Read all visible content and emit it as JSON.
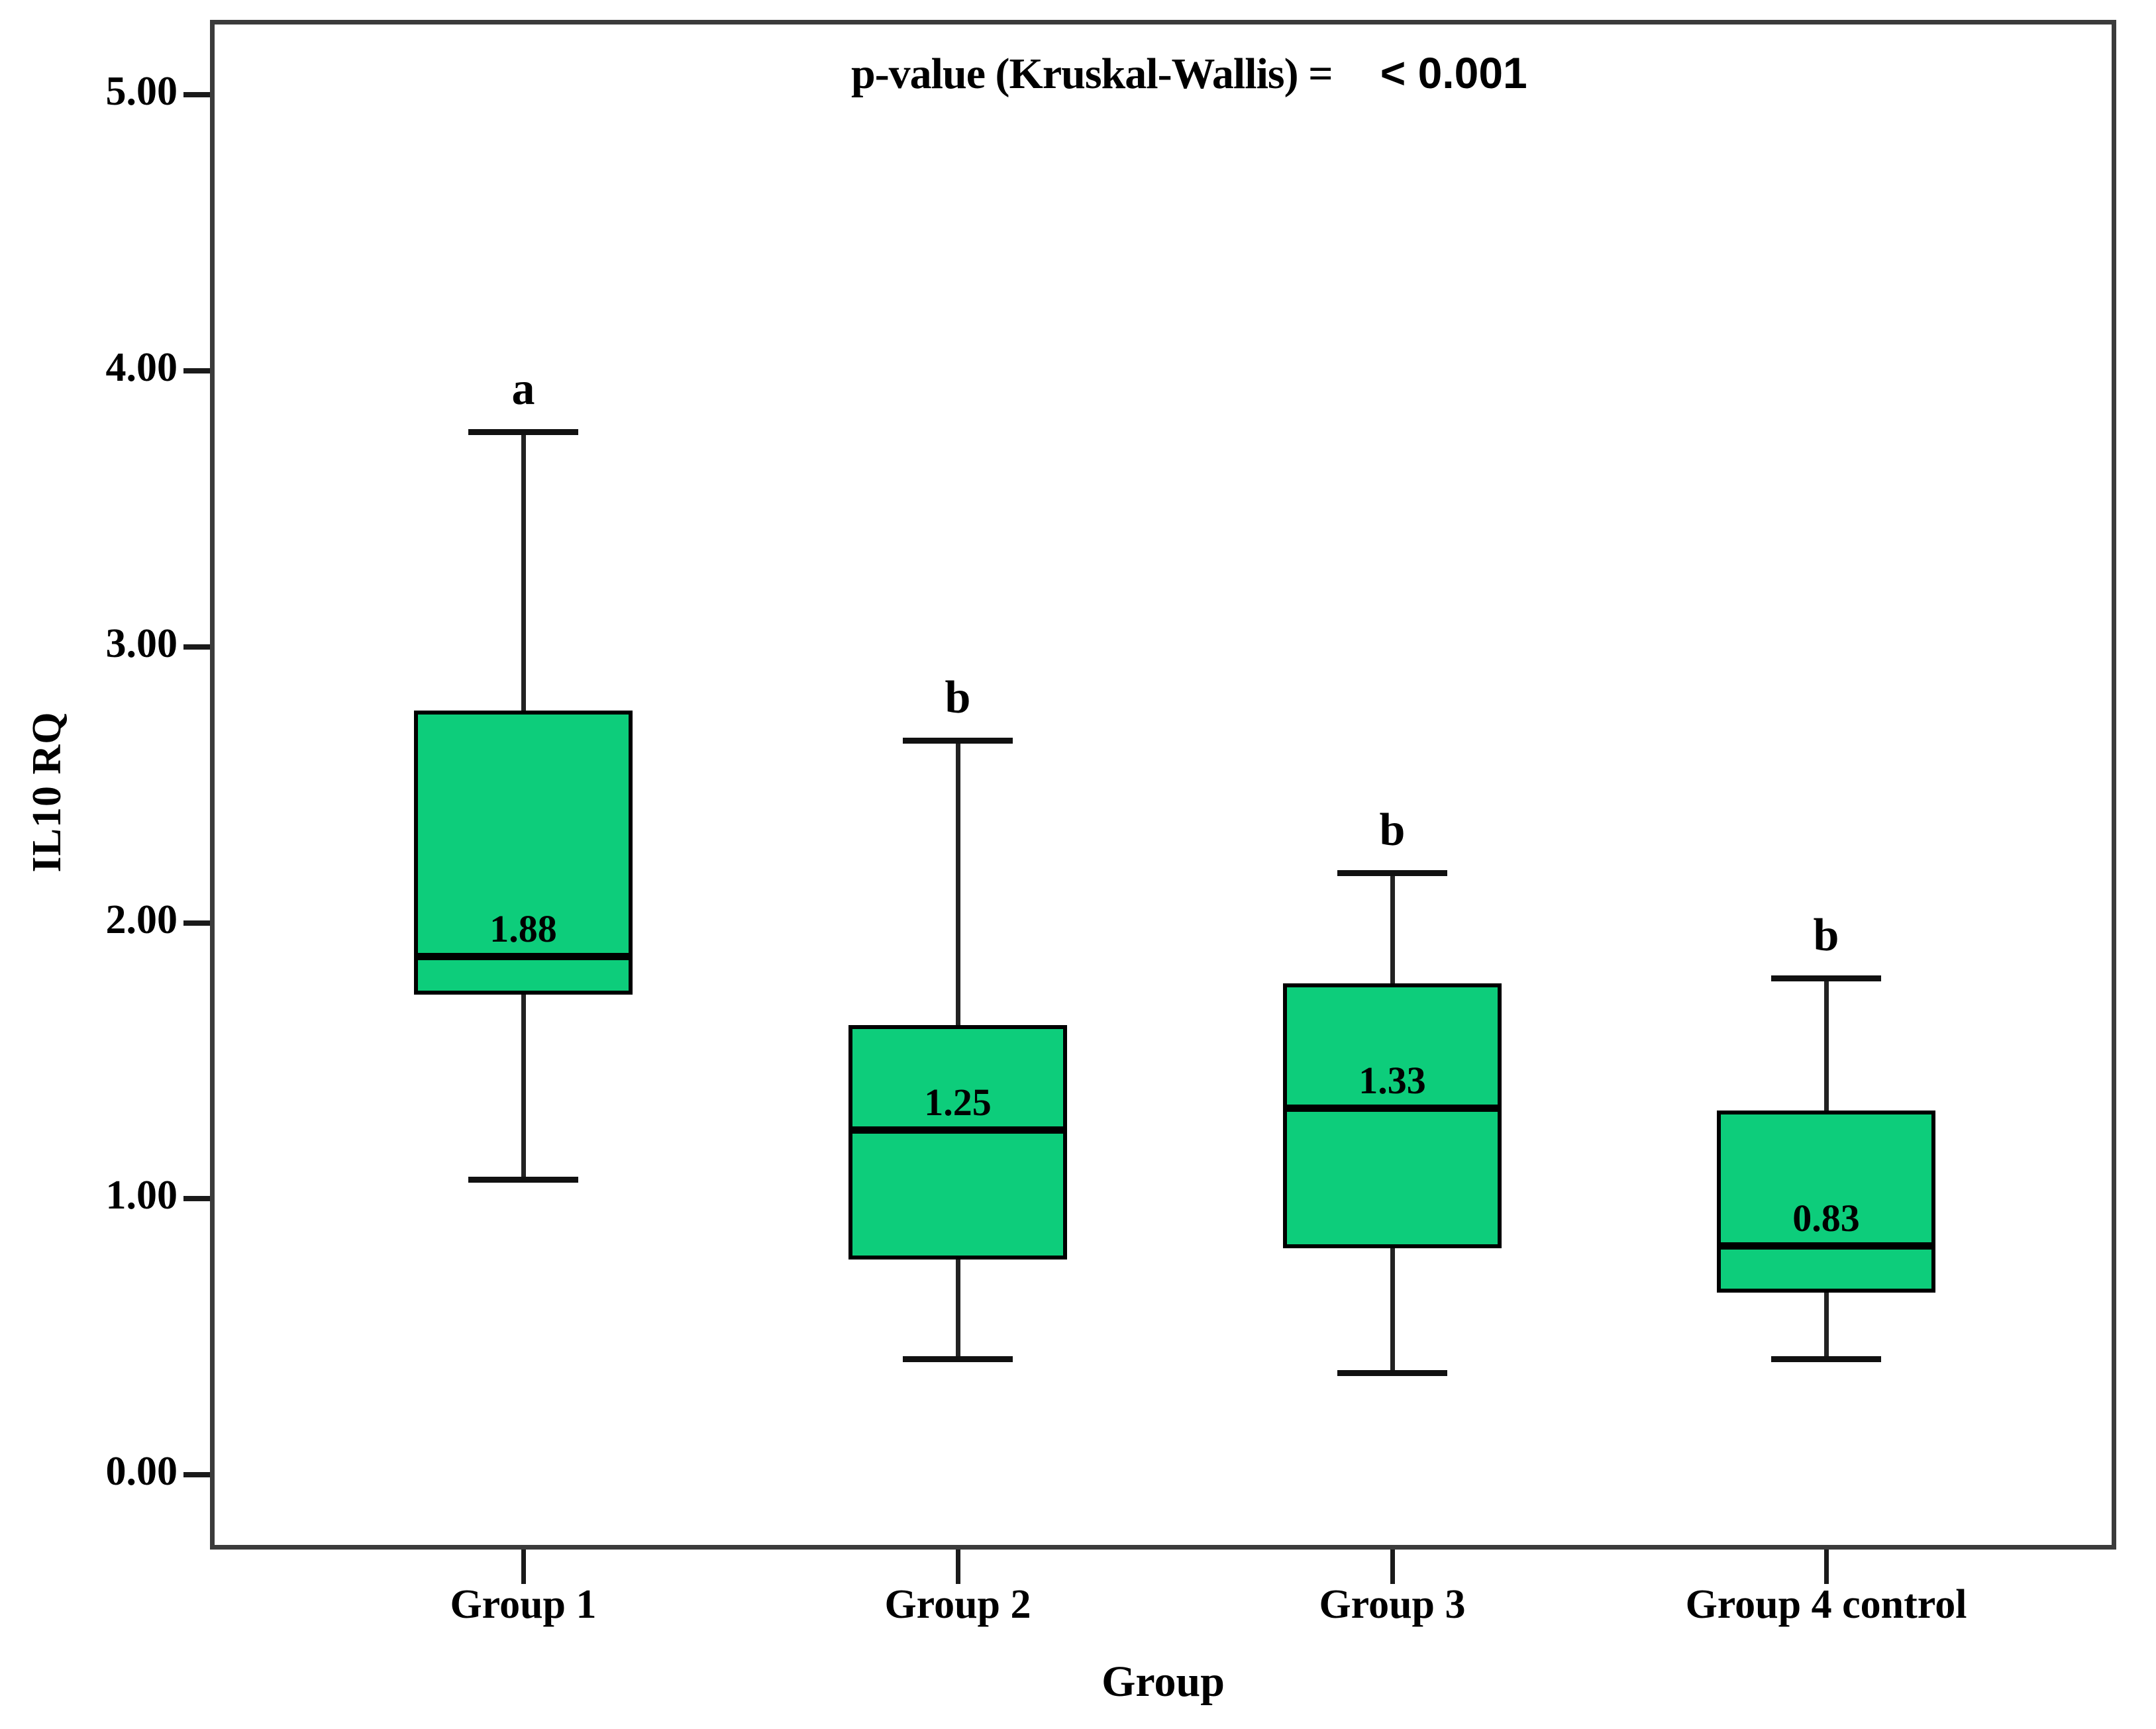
{
  "title": {
    "label": "p-value (Kruskal-Wallis) =",
    "value": "< 0.001"
  },
  "y_axis": {
    "label": "IL10 RQ"
  },
  "x_axis": {
    "label": "Group"
  },
  "chart_data": {
    "type": "boxplot",
    "title": "p-value (Kruskal-Wallis) = < 0.001",
    "xlabel": "Group",
    "ylabel": "IL10 RQ",
    "ylim": [
      0,
      5
    ],
    "yticks": [
      {
        "value": 0,
        "label": "0.00"
      },
      {
        "value": 1,
        "label": "1.00"
      },
      {
        "value": 2,
        "label": "2.00"
      },
      {
        "value": 3,
        "label": "3.00"
      },
      {
        "value": 4,
        "label": "4.00"
      },
      {
        "value": 5,
        "label": "5.00"
      }
    ],
    "grid": false,
    "legend": false,
    "box_fill_color": "#0dcd7b",
    "box_border_color": "#000000",
    "groups": [
      {
        "label": "Group 1",
        "whisker_low": 1.07,
        "q1": 1.74,
        "median": 1.88,
        "q3": 2.77,
        "whisker_high": 3.78,
        "median_label": "1.88",
        "sig_letter": "a"
      },
      {
        "label": "Group 2",
        "whisker_low": 0.42,
        "q1": 0.78,
        "median": 1.25,
        "q3": 1.63,
        "whisker_high": 2.66,
        "median_label": "1.25",
        "sig_letter": "b"
      },
      {
        "label": "Group 3",
        "whisker_low": 0.37,
        "q1": 0.82,
        "median": 1.33,
        "q3": 1.78,
        "whisker_high": 2.18,
        "median_label": "1.33",
        "sig_letter": "b"
      },
      {
        "label": "Group 4 control",
        "whisker_low": 0.42,
        "q1": 0.66,
        "median": 0.83,
        "q3": 1.32,
        "whisker_high": 1.8,
        "median_label": "0.83",
        "sig_letter": "b"
      }
    ]
  }
}
